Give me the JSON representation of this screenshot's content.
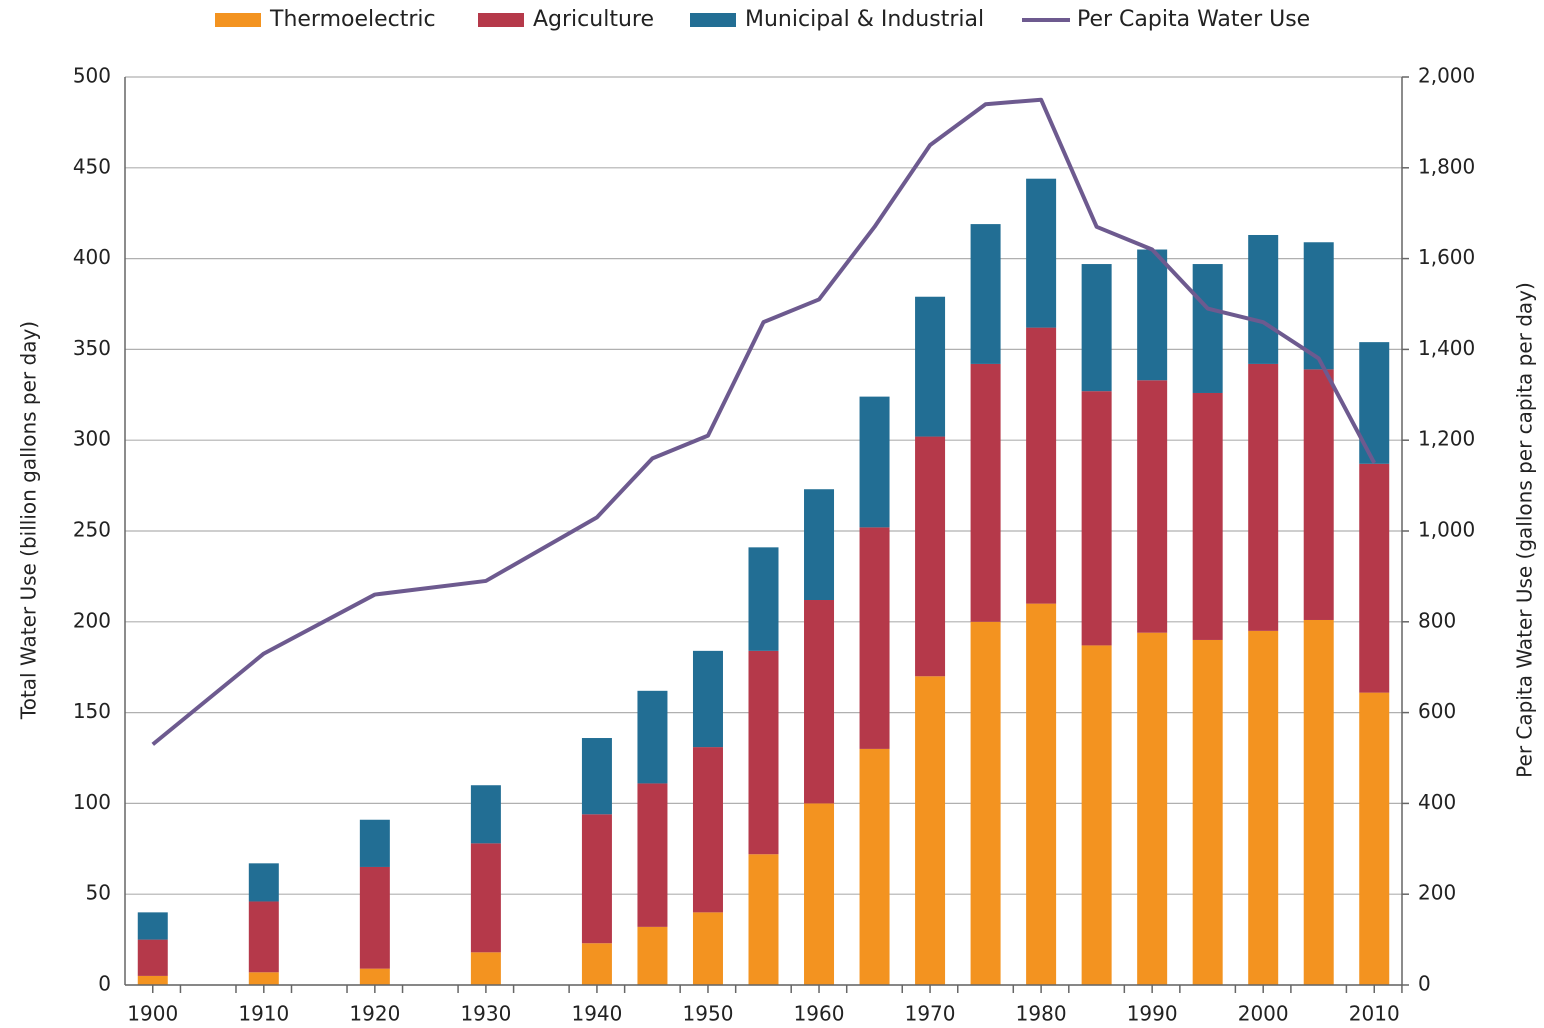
{
  "chart_data": {
    "type": "bar",
    "stacked": true,
    "y_label": "Total Water Use (billion gallons per day)",
    "y2_label": "Per Capita Water Use (gallons per capita per day)",
    "x": [
      1900,
      1910,
      1920,
      1930,
      1940,
      1945,
      1950,
      1955,
      1960,
      1965,
      1970,
      1975,
      1980,
      1985,
      1990,
      1995,
      2000,
      2005,
      2010
    ],
    "series": [
      {
        "name": "Thermoelectric",
        "type": "bar",
        "color": "#f39320",
        "values": [
          5,
          7,
          9,
          18,
          23,
          32,
          40,
          72,
          100,
          130,
          170,
          200,
          210,
          187,
          194,
          190,
          195,
          201,
          161
        ]
      },
      {
        "name": "Agriculture",
        "type": "bar",
        "color": "#b5394a",
        "values": [
          20,
          39,
          56,
          60,
          71,
          79,
          91,
          112,
          112,
          122,
          132,
          142,
          152,
          140,
          139,
          136,
          147,
          138,
          126
        ]
      },
      {
        "name": "Municipal & Industrial",
        "type": "bar",
        "color": "#226e94",
        "values": [
          15,
          21,
          26,
          32,
          42,
          51,
          53,
          57,
          61,
          72,
          77,
          77,
          82,
          70,
          72,
          71,
          71,
          70,
          67
        ]
      },
      {
        "name": "Per Capita Water Use",
        "type": "line",
        "axis": "y2",
        "color": "#6d5a8f",
        "values": [
          530,
          730,
          860,
          890,
          1030,
          1160,
          1210,
          1460,
          1510,
          1670,
          1850,
          1940,
          1950,
          1670,
          1620,
          1490,
          1460,
          1380,
          1150
        ]
      }
    ],
    "xlim": [
      1897.5,
      2012.5
    ],
    "xticks": [
      1900,
      1910,
      1920,
      1930,
      1940,
      1950,
      1960,
      1970,
      1980,
      1990,
      2000,
      2010
    ],
    "ylim": [
      0,
      500
    ],
    "yticks": [
      0,
      50,
      100,
      150,
      200,
      250,
      300,
      350,
      400,
      450,
      500
    ],
    "y2lim": [
      0,
      2000
    ],
    "y2ticks": [
      0,
      200,
      400,
      600,
      800,
      {
        "value": 1000,
        "label": "1,000"
      },
      {
        "value": 1200,
        "label": "1,200"
      },
      {
        "value": 1400,
        "label": "1,400"
      },
      {
        "value": 1600,
        "label": "1,600"
      },
      {
        "value": 1800,
        "label": "1,800"
      },
      {
        "value": 2000,
        "label": "2,000"
      }
    ],
    "grid": true,
    "legend": "top"
  }
}
